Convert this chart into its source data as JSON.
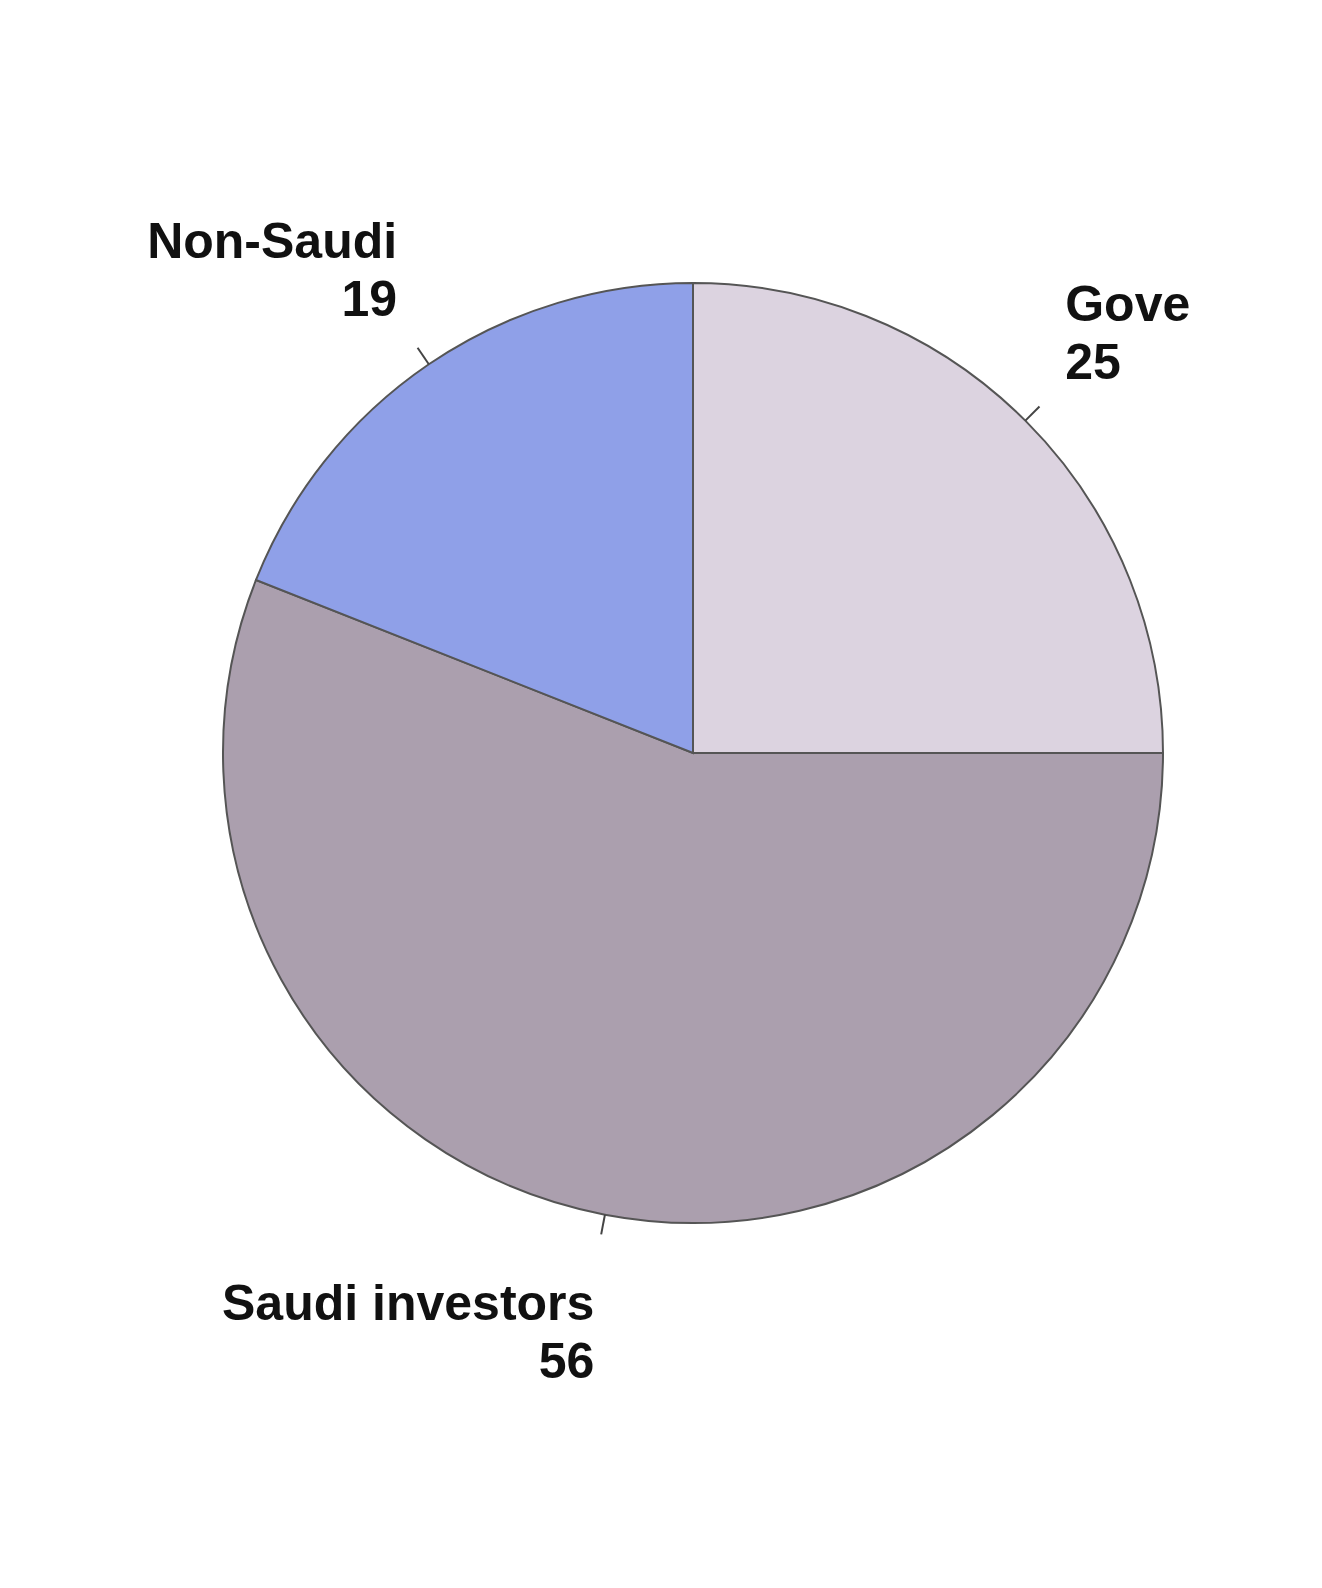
{
  "chart_data": {
    "type": "pie",
    "categories": [
      "Gove",
      "Saudi investors",
      "Non-Saudi"
    ],
    "values": [
      25,
      56,
      19
    ],
    "colors": [
      "#dcd3e0",
      "#ab9fae",
      "#8fa0e8"
    ],
    "data_labels": true
  }
}
